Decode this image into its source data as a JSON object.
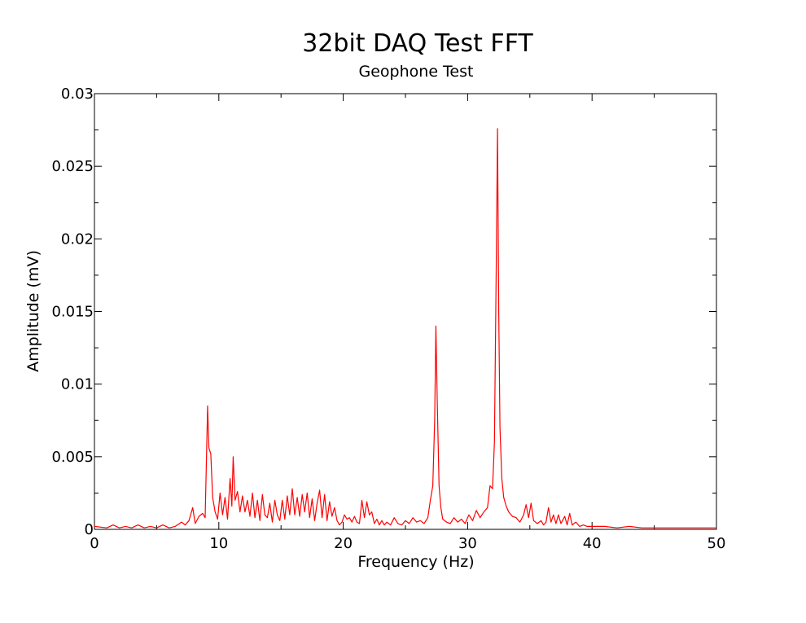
{
  "chart_data": {
    "type": "line",
    "title": "32bit DAQ Test FFT",
    "subtitle": "Geophone Test",
    "xlabel": "Frequency (Hz)",
    "ylabel": "Amplitude (mV)",
    "xlim": [
      0,
      50
    ],
    "ylim": [
      0,
      0.03
    ],
    "xticks": [
      "0",
      "10",
      "20",
      "30",
      "40",
      "50"
    ],
    "yticks": [
      "0",
      "0.005",
      "0.01",
      "0.015",
      "0.02",
      "0.025",
      "0.03"
    ],
    "grid": false,
    "series": [
      {
        "color": "#ff0000",
        "points": [
          [
            0,
            0.0002
          ],
          [
            1,
            0.0001
          ],
          [
            1.5,
            0.0003
          ],
          [
            2,
            0.0001
          ],
          [
            2.5,
            0.0002
          ],
          [
            3,
            0.0001
          ],
          [
            3.5,
            0.0003
          ],
          [
            4,
            0.0001
          ],
          [
            4.5,
            0.0002
          ],
          [
            5,
            0.0001
          ],
          [
            5.5,
            0.0003
          ],
          [
            6,
            0.0001
          ],
          [
            6.5,
            0.0002
          ],
          [
            7,
            0.0005
          ],
          [
            7.3,
            0.0003
          ],
          [
            7.6,
            0.0006
          ],
          [
            7.9,
            0.0015
          ],
          [
            8.1,
            0.0004
          ],
          [
            8.4,
            0.0009
          ],
          [
            8.7,
            0.0011
          ],
          [
            8.9,
            0.0008
          ],
          [
            9.1,
            0.0085
          ],
          [
            9.2,
            0.0056
          ],
          [
            9.35,
            0.0052
          ],
          [
            9.5,
            0.0022
          ],
          [
            9.7,
            0.0012
          ],
          [
            9.9,
            0.0007
          ],
          [
            10.1,
            0.0025
          ],
          [
            10.3,
            0.001
          ],
          [
            10.5,
            0.0022
          ],
          [
            10.7,
            0.0007
          ],
          [
            10.9,
            0.0035
          ],
          [
            11.05,
            0.0016
          ],
          [
            11.15,
            0.005
          ],
          [
            11.3,
            0.002
          ],
          [
            11.5,
            0.0026
          ],
          [
            11.7,
            0.0012
          ],
          [
            11.9,
            0.0023
          ],
          [
            12.1,
            0.0012
          ],
          [
            12.3,
            0.002
          ],
          [
            12.5,
            0.0009
          ],
          [
            12.7,
            0.0025
          ],
          [
            12.9,
            0.0008
          ],
          [
            13.1,
            0.002
          ],
          [
            13.3,
            0.0006
          ],
          [
            13.5,
            0.0024
          ],
          [
            13.7,
            0.001
          ],
          [
            13.9,
            0.0008
          ],
          [
            14.1,
            0.0018
          ],
          [
            14.3,
            0.0005
          ],
          [
            14.5,
            0.002
          ],
          [
            14.7,
            0.001
          ],
          [
            14.9,
            0.0006
          ],
          [
            15.1,
            0.002
          ],
          [
            15.3,
            0.0007
          ],
          [
            15.5,
            0.0023
          ],
          [
            15.7,
            0.001
          ],
          [
            15.9,
            0.0028
          ],
          [
            16.1,
            0.001
          ],
          [
            16.3,
            0.0022
          ],
          [
            16.5,
            0.0009
          ],
          [
            16.7,
            0.0024
          ],
          [
            16.9,
            0.0012
          ],
          [
            17.1,
            0.0025
          ],
          [
            17.3,
            0.0008
          ],
          [
            17.5,
            0.0021
          ],
          [
            17.7,
            0.0006
          ],
          [
            17.9,
            0.0018
          ],
          [
            18.1,
            0.0027
          ],
          [
            18.3,
            0.0008
          ],
          [
            18.5,
            0.0024
          ],
          [
            18.7,
            0.0006
          ],
          [
            18.9,
            0.0019
          ],
          [
            19.1,
            0.0009
          ],
          [
            19.3,
            0.0015
          ],
          [
            19.5,
            0.0006
          ],
          [
            19.7,
            0.0003
          ],
          [
            19.9,
            0.0005
          ],
          [
            20.1,
            0.001
          ],
          [
            20.3,
            0.0007
          ],
          [
            20.5,
            0.0008
          ],
          [
            20.7,
            0.0005
          ],
          [
            20.9,
            0.0009
          ],
          [
            21.1,
            0.0005
          ],
          [
            21.3,
            0.0004
          ],
          [
            21.5,
            0.002
          ],
          [
            21.7,
            0.0008
          ],
          [
            21.9,
            0.0019
          ],
          [
            22.1,
            0.001
          ],
          [
            22.3,
            0.0012
          ],
          [
            22.5,
            0.0004
          ],
          [
            22.7,
            0.0007
          ],
          [
            22.9,
            0.0003
          ],
          [
            23.1,
            0.0006
          ],
          [
            23.3,
            0.0003
          ],
          [
            23.5,
            0.0005
          ],
          [
            23.8,
            0.0003
          ],
          [
            24.1,
            0.0008
          ],
          [
            24.4,
            0.0004
          ],
          [
            24.7,
            0.0003
          ],
          [
            25.0,
            0.0006
          ],
          [
            25.3,
            0.0004
          ],
          [
            25.6,
            0.0008
          ],
          [
            25.9,
            0.0005
          ],
          [
            26.2,
            0.0006
          ],
          [
            26.5,
            0.0004
          ],
          [
            26.8,
            0.0008
          ],
          [
            27.0,
            0.002
          ],
          [
            27.2,
            0.003
          ],
          [
            27.35,
            0.0075
          ],
          [
            27.45,
            0.014
          ],
          [
            27.55,
            0.009
          ],
          [
            27.7,
            0.003
          ],
          [
            27.85,
            0.0015
          ],
          [
            28.0,
            0.0007
          ],
          [
            28.3,
            0.0005
          ],
          [
            28.6,
            0.0004
          ],
          [
            28.9,
            0.0008
          ],
          [
            29.2,
            0.0005
          ],
          [
            29.5,
            0.0007
          ],
          [
            29.8,
            0.0004
          ],
          [
            30.1,
            0.001
          ],
          [
            30.4,
            0.0006
          ],
          [
            30.7,
            0.0013
          ],
          [
            31.0,
            0.0008
          ],
          [
            31.3,
            0.0012
          ],
          [
            31.6,
            0.0015
          ],
          [
            31.8,
            0.003
          ],
          [
            32.0,
            0.0028
          ],
          [
            32.15,
            0.006
          ],
          [
            32.3,
            0.018
          ],
          [
            32.4,
            0.0276
          ],
          [
            32.5,
            0.015
          ],
          [
            32.6,
            0.007
          ],
          [
            32.75,
            0.0035
          ],
          [
            32.9,
            0.0022
          ],
          [
            33.1,
            0.0016
          ],
          [
            33.3,
            0.0012
          ],
          [
            33.6,
            0.0009
          ],
          [
            33.9,
            0.0008
          ],
          [
            34.2,
            0.0005
          ],
          [
            34.5,
            0.001
          ],
          [
            34.7,
            0.0017
          ],
          [
            34.9,
            0.0008
          ],
          [
            35.1,
            0.0018
          ],
          [
            35.3,
            0.0006
          ],
          [
            35.6,
            0.0004
          ],
          [
            35.9,
            0.0006
          ],
          [
            36.1,
            0.0003
          ],
          [
            36.3,
            0.0005
          ],
          [
            36.5,
            0.0015
          ],
          [
            36.7,
            0.0005
          ],
          [
            36.9,
            0.001
          ],
          [
            37.1,
            0.0004
          ],
          [
            37.3,
            0.001
          ],
          [
            37.5,
            0.0004
          ],
          [
            37.8,
            0.0009
          ],
          [
            38.0,
            0.0003
          ],
          [
            38.2,
            0.0011
          ],
          [
            38.4,
            0.0003
          ],
          [
            38.7,
            0.0005
          ],
          [
            39.0,
            0.0002
          ],
          [
            39.3,
            0.0003
          ],
          [
            39.6,
            0.0002
          ],
          [
            40,
            0.0002
          ],
          [
            41,
            0.0002
          ],
          [
            42,
            0.0001
          ],
          [
            43,
            0.0002
          ],
          [
            44,
            0.0001
          ],
          [
            45,
            0.0001
          ],
          [
            46,
            0.0001
          ],
          [
            47,
            0.0001
          ],
          [
            48,
            0.0001
          ],
          [
            49,
            0.0001
          ],
          [
            50,
            0.0001
          ]
        ]
      }
    ]
  }
}
